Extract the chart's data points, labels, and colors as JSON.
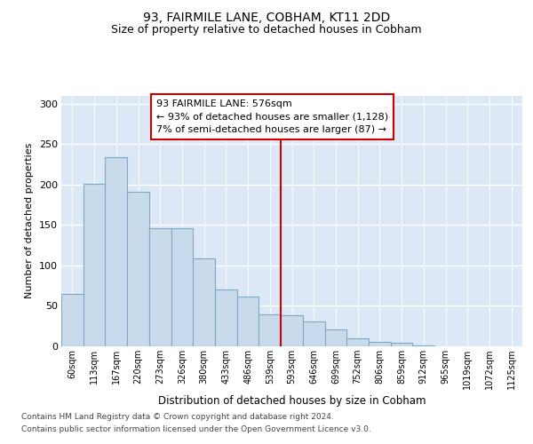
{
  "title1": "93, FAIRMILE LANE, COBHAM, KT11 2DD",
  "title2": "Size of property relative to detached houses in Cobham",
  "xlabel": "Distribution of detached houses by size in Cobham",
  "ylabel": "Number of detached properties",
  "footer1": "Contains HM Land Registry data © Crown copyright and database right 2024.",
  "footer2": "Contains public sector information licensed under the Open Government Licence v3.0.",
  "categories": [
    "60sqm",
    "113sqm",
    "167sqm",
    "220sqm",
    "273sqm",
    "326sqm",
    "380sqm",
    "433sqm",
    "486sqm",
    "539sqm",
    "593sqm",
    "646sqm",
    "699sqm",
    "752sqm",
    "806sqm",
    "859sqm",
    "912sqm",
    "965sqm",
    "1019sqm",
    "1072sqm",
    "1125sqm"
  ],
  "values": [
    65,
    201,
    234,
    191,
    146,
    146,
    109,
    70,
    61,
    39,
    38,
    31,
    21,
    10,
    5,
    4,
    1,
    0,
    0,
    0,
    0
  ],
  "bar_color": "#c9daea",
  "bar_edge_color": "#7aaac8",
  "vline_color": "#cc0000",
  "annotation_text": "93 FAIRMILE LANE: 576sqm\n← 93% of detached houses are smaller (1,128)\n7% of semi-detached houses are larger (87) →",
  "ylim": [
    0,
    310
  ],
  "yticks": [
    0,
    50,
    100,
    150,
    200,
    250,
    300
  ],
  "bg_color": "#dce8f5",
  "vline_index": 10
}
